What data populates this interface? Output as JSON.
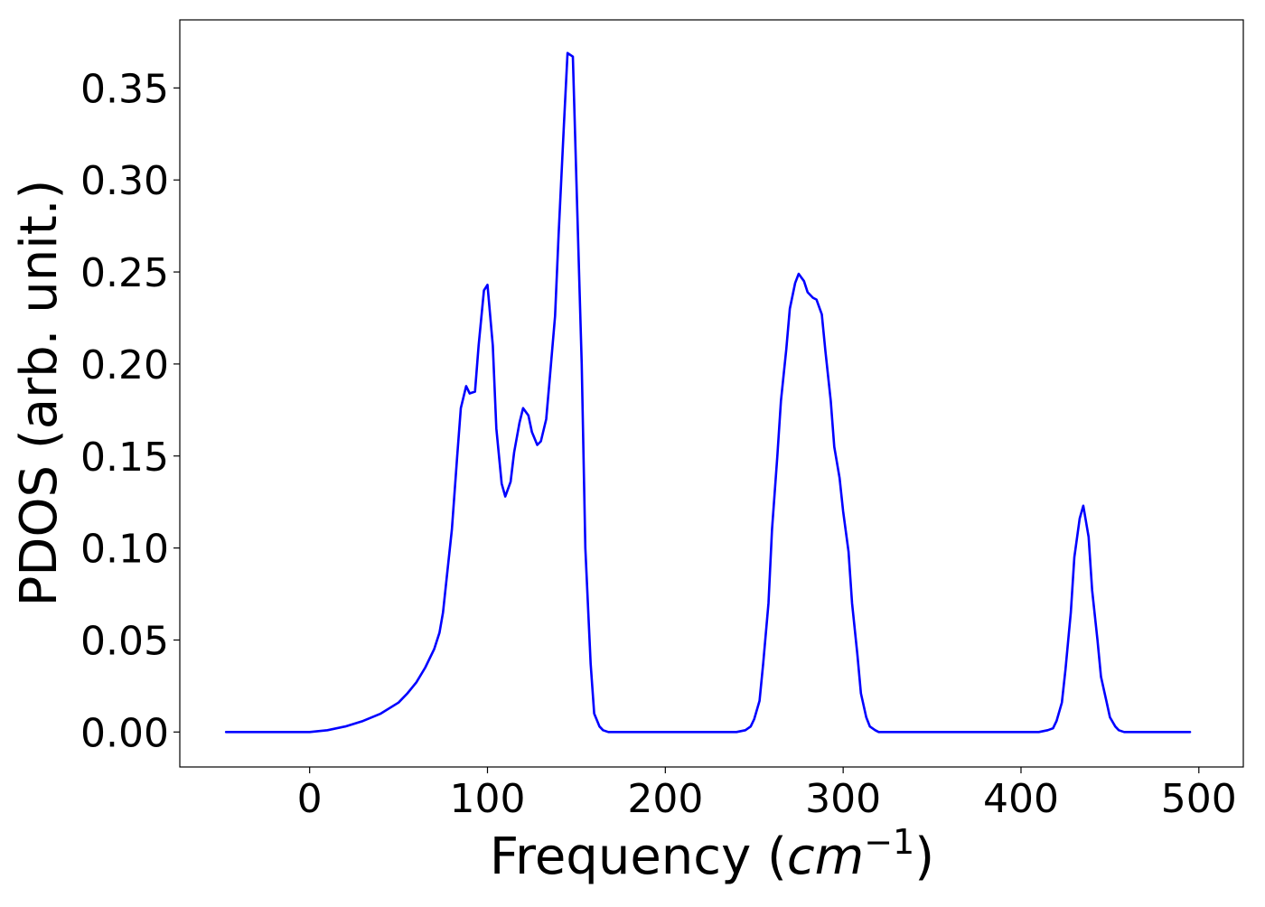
{
  "chart_data": {
    "type": "line",
    "title": "",
    "xlabel": {
      "prefix": "Frequency (",
      "unit_base": "cm",
      "unit_exponent": "−1",
      "suffix": ")"
    },
    "ylabel": "PDOS (arb. unit.)",
    "xlim": [
      -73,
      525
    ],
    "ylim": [
      -0.019,
      0.387
    ],
    "xticks": [
      0,
      100,
      200,
      300,
      400,
      500
    ],
    "xtick_labels": [
      "0",
      "100",
      "200",
      "300",
      "400",
      "500"
    ],
    "yticks": [
      0.0,
      0.05,
      0.1,
      0.15,
      0.2,
      0.25,
      0.3,
      0.35
    ],
    "ytick_labels": [
      "0.00",
      "0.05",
      "0.10",
      "0.15",
      "0.20",
      "0.25",
      "0.30",
      "0.35"
    ],
    "grid": false,
    "legend": "none",
    "series": [
      {
        "color": "#0000ff",
        "x": [
          -47,
          0,
          10,
          20,
          30,
          40,
          50,
          55,
          60,
          65,
          70,
          73,
          75,
          77,
          80,
          83,
          85,
          88,
          90,
          93,
          95,
          98,
          100,
          103,
          105,
          108,
          110,
          113,
          115,
          118,
          120,
          123,
          125,
          128,
          130,
          133,
          135,
          138,
          140,
          143,
          145,
          148,
          150,
          153,
          155,
          158,
          160,
          163,
          165,
          168,
          170,
          173,
          175,
          180,
          200,
          240,
          245,
          248,
          250,
          253,
          255,
          258,
          260,
          263,
          265,
          268,
          270,
          273,
          275,
          278,
          280,
          283,
          285,
          288,
          290,
          293,
          295,
          298,
          300,
          303,
          305,
          308,
          310,
          313,
          315,
          318,
          320,
          323,
          325,
          330,
          380,
          410,
          415,
          418,
          420,
          423,
          425,
          428,
          430,
          433,
          435,
          438,
          440,
          443,
          445,
          448,
          450,
          453,
          455,
          458,
          460,
          465,
          495
        ],
        "y": [
          0.0,
          0.0,
          0.001,
          0.003,
          0.006,
          0.01,
          0.016,
          0.021,
          0.027,
          0.035,
          0.045,
          0.054,
          0.065,
          0.083,
          0.11,
          0.15,
          0.176,
          0.188,
          0.184,
          0.185,
          0.21,
          0.24,
          0.243,
          0.21,
          0.165,
          0.135,
          0.128,
          0.136,
          0.152,
          0.168,
          0.176,
          0.172,
          0.163,
          0.156,
          0.158,
          0.17,
          0.192,
          0.226,
          0.27,
          0.33,
          0.369,
          0.367,
          0.3,
          0.2,
          0.1,
          0.037,
          0.01,
          0.003,
          0.001,
          0.0,
          0.0,
          0.0,
          0.0,
          0.0,
          0.0,
          0.0,
          0.001,
          0.003,
          0.007,
          0.017,
          0.037,
          0.07,
          0.11,
          0.15,
          0.18,
          0.208,
          0.23,
          0.244,
          0.249,
          0.245,
          0.239,
          0.236,
          0.235,
          0.227,
          0.207,
          0.18,
          0.155,
          0.138,
          0.12,
          0.098,
          0.07,
          0.042,
          0.021,
          0.008,
          0.003,
          0.001,
          0.0,
          0.0,
          0.0,
          0.0,
          0.0,
          0.0,
          0.001,
          0.002,
          0.006,
          0.016,
          0.034,
          0.065,
          0.095,
          0.116,
          0.123,
          0.106,
          0.077,
          0.05,
          0.03,
          0.017,
          0.008,
          0.003,
          0.001,
          0.0,
          0.0,
          0.0,
          0.0
        ]
      }
    ]
  }
}
